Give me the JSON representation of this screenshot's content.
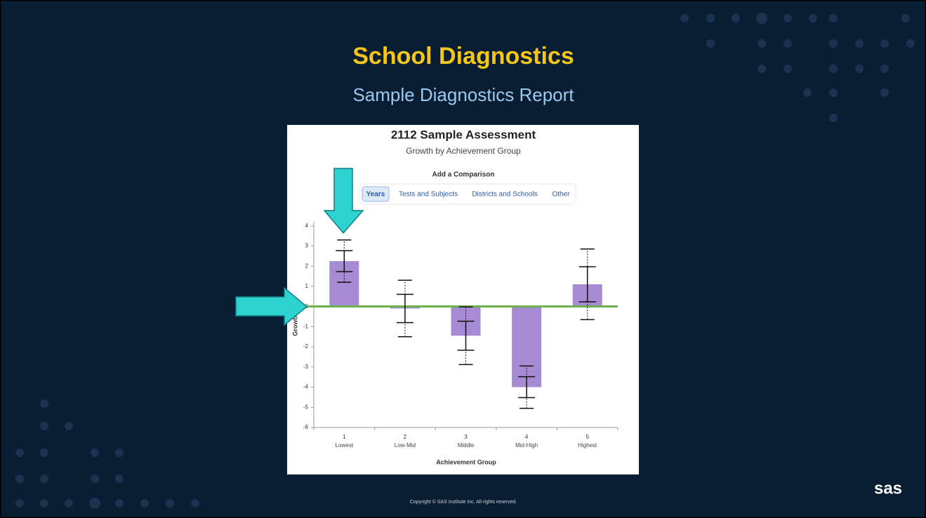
{
  "slide": {
    "title": "School Diagnostics",
    "subtitle": "Sample Diagnostics Report",
    "copyright": "Copyright © SAS Institute Inc. All rights reserved.",
    "logo": "sas"
  },
  "comparison": {
    "label": "Add a Comparison",
    "tabs": [
      "Years",
      "Tests and Subjects",
      "Districts and Schools",
      "Other"
    ],
    "selected": "Years"
  },
  "chart_data": {
    "type": "bar",
    "title": "2112 Sample Assessment",
    "subtitle": "Growth by Achievement Group",
    "x_label": "Achievement Group",
    "y_label": "Growth",
    "categories": [
      "1",
      "2",
      "3",
      "4",
      "5"
    ],
    "category_labels": [
      "Lowest",
      "Low-Mid",
      "Middle",
      "Mid-High",
      "Highest"
    ],
    "values": [
      2.25,
      -0.1,
      -1.45,
      -4.0,
      1.1
    ],
    "errors": [
      0.52,
      0.7,
      0.72,
      0.52,
      0.87
    ],
    "wide_errors": [
      1.05,
      1.4,
      1.43,
      1.05,
      1.75
    ],
    "color": "#a68bd4",
    "reference_line": {
      "value": 0,
      "color": "#6ab04c"
    },
    "ylim": [
      -6,
      4.2
    ],
    "yticks": [
      -6,
      -5,
      -4,
      -3,
      -2,
      -1,
      0,
      1,
      2,
      3,
      4
    ]
  }
}
